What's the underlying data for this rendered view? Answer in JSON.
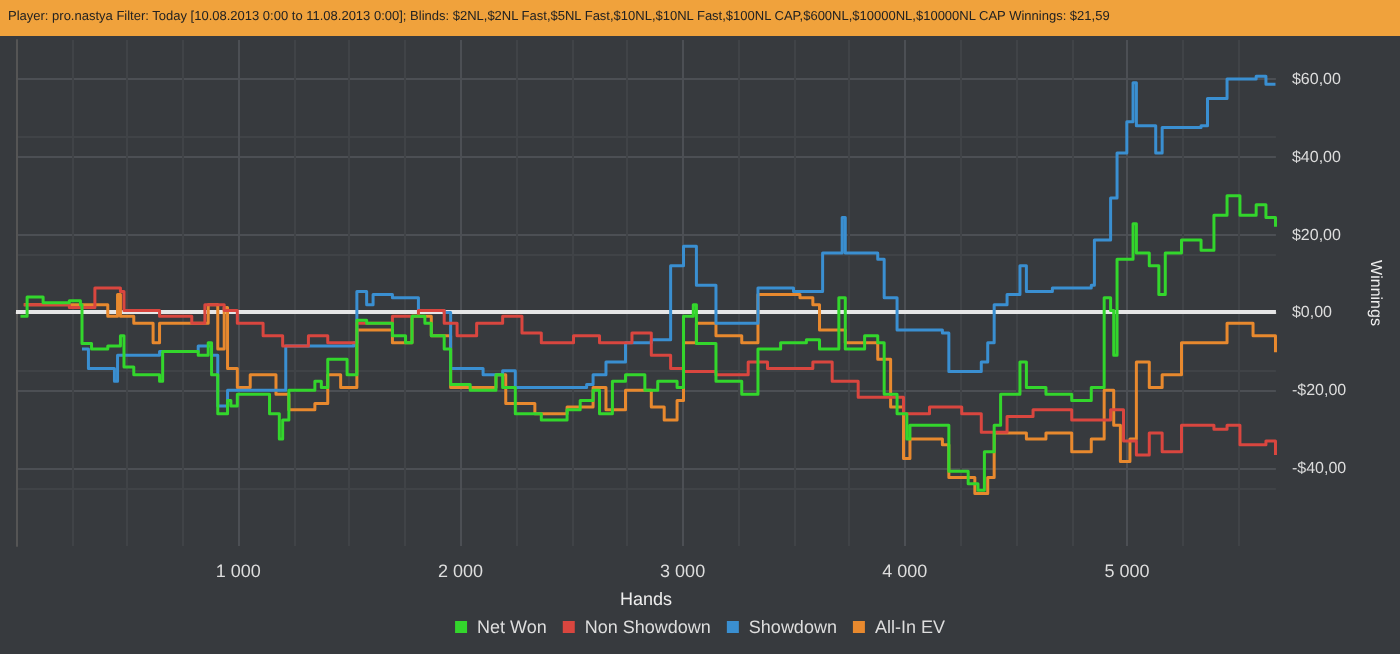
{
  "chart_data": {
    "type": "step",
    "title": "Player: pro.nastya Filter: Today [10.08.2013 0:00 to 11.08.2013 0:00]; Blinds: $2NL,$2NL Fast,$5NL Fast,$10NL,$10NL Fast,$100NL CAP,$600NL,$10000NL,$10000NL CAP Winnings: $21,59",
    "xlabel": "Hands",
    "ylabel": "Winnings",
    "xlim": [
      0,
      5670
    ],
    "ylim": [
      -60,
      70
    ],
    "xticks": [
      {
        "value": 1000,
        "label": "1 000"
      },
      {
        "value": 2000,
        "label": "2 000"
      },
      {
        "value": 3000,
        "label": "3 000"
      },
      {
        "value": 4000,
        "label": "4 000"
      },
      {
        "value": 5000,
        "label": "5 000"
      }
    ],
    "yticks": [
      {
        "value": -40,
        "label": "-$40,00"
      },
      {
        "value": -20,
        "label": "-$20,00"
      },
      {
        "value": 0,
        "label": "$0,00"
      },
      {
        "value": 20,
        "label": "$20,00"
      },
      {
        "value": 40,
        "label": "$40,00"
      },
      {
        "value": 60,
        "label": "$60,00"
      }
    ],
    "grid": true,
    "legend": "bottom",
    "marker": "none",
    "line_style": "solid",
    "ref_lines": [
      {
        "axis": "y",
        "value": 0,
        "label": null,
        "color": "#e6e6e6"
      }
    ],
    "series": [
      {
        "name": "Net Won",
        "color": "#33d62c",
        "x": [
          20,
          50,
          122,
          240,
          290,
          297,
          340,
          413,
          470,
          486,
          530,
          646,
          660,
          820,
          865,
          880,
          908,
          952,
          967,
          996,
          1141,
          1185,
          1200,
          1228,
          1345,
          1374,
          1403,
          1490,
          1534,
          1578,
          1694,
          1753,
          1782,
          1840,
          1869,
          1927,
          1956,
          2044,
          2160,
          2190,
          2247,
          2364,
          2480,
          2539,
          2597,
          2626,
          2684,
          2743,
          2830,
          2888,
          2975,
          3004,
          3048,
          3062,
          3150,
          3266,
          3339,
          3441,
          3557,
          3616,
          3703,
          3732,
          3819,
          3878,
          3907,
          3965,
          4009,
          4023,
          4169,
          4198,
          4285,
          4329,
          4358,
          4402,
          4431,
          4504,
          4518,
          4547,
          4635,
          4751,
          4839,
          4897,
          4926,
          4940,
          4955,
          5013,
          5027,
          5042,
          5100,
          5143,
          5172,
          5245,
          5333,
          5391,
          5450,
          5508,
          5581,
          5625,
          5668
        ],
        "values": [
          -1,
          4,
          2.5,
          3,
          2,
          -8,
          -9.4,
          -8.6,
          -6,
          -14,
          -16,
          -17.7,
          -10,
          -11,
          -7.8,
          -16,
          -26,
          -22.6,
          -24,
          -21,
          -26,
          -32.5,
          -27.6,
          -20,
          -17.7,
          -19.3,
          -12,
          -16,
          -2,
          -2.8,
          -6,
          -7.8,
          -1,
          -2.8,
          -6,
          -9.4,
          -18.5,
          -20,
          -16,
          -19.3,
          -26,
          -27.6,
          -25,
          -22.6,
          -20,
          -26,
          -17.7,
          -16,
          -20,
          -17.7,
          -19.3,
          -1,
          2,
          -8,
          -17.7,
          -21,
          -9.4,
          -7.8,
          -7,
          -9.4,
          3.8,
          -9.4,
          -6,
          -7.8,
          -21,
          -26,
          -32.5,
          -29,
          -29,
          -40.8,
          -44,
          -45.7,
          -35.8,
          -29,
          -21,
          -21,
          -12.7,
          -19.3,
          -21,
          -22.6,
          -19.3,
          3.8,
          0.5,
          -11,
          13.7,
          13.7,
          22.8,
          15.3,
          12,
          4.6,
          15.3,
          18.6,
          16,
          25,
          30,
          25,
          27.7,
          24.4,
          22
        ]
      },
      {
        "name": "Non Showdown",
        "color": "#d9463f",
        "x": [
          35,
          240,
          355,
          470,
          486,
          646,
          791,
          850,
          937,
          996,
          1112,
          1200,
          1316,
          1403,
          1534,
          1694,
          1811,
          1927,
          1985,
          2073,
          2190,
          2277,
          2364,
          2509,
          2626,
          2772,
          2859,
          2946,
          3004,
          3150,
          3295,
          3382,
          3586,
          3673,
          3790,
          3878,
          3994,
          4111,
          4256,
          4344,
          4460,
          4577,
          4751,
          4926,
          4984,
          5042,
          5100,
          5158,
          5245,
          5391,
          5450,
          5508,
          5625,
          5668
        ],
        "values": [
          2,
          1.3,
          6.3,
          5.4,
          0.5,
          -1,
          -2.8,
          2,
          0.5,
          -2.8,
          -6,
          -8.6,
          -6,
          -7.8,
          -2.8,
          -1,
          0.5,
          -2.8,
          -6,
          -2.8,
          -1,
          -5.3,
          -7.8,
          -6,
          -7.8,
          -5.3,
          -11,
          -14.4,
          -15.2,
          -16,
          -12.7,
          -14.4,
          -12.7,
          -17.7,
          -21.8,
          -21.8,
          -26,
          -24.3,
          -26,
          -30.8,
          -26.7,
          -25,
          -27.6,
          -25,
          -33,
          -36.6,
          -31,
          -35.8,
          -29,
          -30,
          -29,
          -34,
          -33,
          -36.6
        ]
      },
      {
        "name": "Showdown",
        "color": "#3a8fd1",
        "x": [
          297,
          326,
          443,
          457,
          646,
          820,
          880,
          908,
          952,
          1170,
          1214,
          1403,
          1520,
          1534,
          1578,
          1607,
          1694,
          1811,
          1927,
          1956,
          2102,
          2190,
          2247,
          2568,
          2597,
          2655,
          2743,
          2859,
          2946,
          3004,
          3062,
          3150,
          3324,
          3339,
          3499,
          3616,
          3630,
          3718,
          3732,
          3878,
          3907,
          3965,
          4169,
          4198,
          4344,
          4373,
          4402,
          4460,
          4518,
          4547,
          4664,
          4839,
          4853,
          4926,
          4955,
          4999,
          5027,
          5042,
          5129,
          5158,
          5333,
          5362,
          5450,
          5581,
          5625,
          5668
        ],
        "values": [
          -9.4,
          -14.4,
          -17.7,
          -11,
          -10,
          -8.6,
          -11,
          -24,
          -20,
          -20,
          -8.6,
          -8.6,
          -7.8,
          5.4,
          2,
          4.6,
          3.8,
          0.5,
          0,
          -14.4,
          -16,
          -15,
          -19.3,
          -18.5,
          -16,
          -12.7,
          -7.8,
          -7,
          12,
          17,
          7,
          -2.8,
          -2.8,
          6.3,
          5.4,
          5.4,
          15.3,
          24.4,
          15.3,
          13.7,
          3.8,
          -4.5,
          -5.3,
          -15.2,
          -12.7,
          -7.8,
          2,
          4.6,
          12,
          5.4,
          6.3,
          7,
          18.6,
          29.4,
          41,
          49,
          59,
          48,
          41,
          47.5,
          48,
          55,
          60,
          60.7,
          58.6,
          58.3
        ]
      },
      {
        "name": "All-In EV",
        "color": "#e8892e",
        "x": [
          35,
          290,
          340,
          413,
          457,
          470,
          530,
          617,
          646,
          791,
          865,
          908,
          937,
          952,
          996,
          1054,
          1170,
          1228,
          1345,
          1403,
          1461,
          1534,
          1694,
          1782,
          1869,
          1956,
          2160,
          2204,
          2335,
          2480,
          2597,
          2655,
          2743,
          2859,
          2917,
          2975,
          3004,
          3062,
          3150,
          3266,
          3339,
          3528,
          3586,
          3616,
          3732,
          3878,
          3936,
          3994,
          4023,
          4169,
          4198,
          4315,
          4373,
          4402,
          4547,
          4635,
          4751,
          4839,
          4897,
          4940,
          4970,
          5013,
          5042,
          5100,
          5158,
          5245,
          5333,
          5450,
          5567,
          5668
        ],
        "values": [
          2,
          2,
          2,
          -1,
          4.6,
          -1,
          -2.8,
          -7.8,
          -2.8,
          -2.8,
          2,
          -9.4,
          1.3,
          -14.4,
          -19.3,
          -16,
          -21,
          -25,
          -23.4,
          -16,
          -19.3,
          -4.5,
          -7.8,
          -1,
          -6,
          -19.3,
          -16,
          -23.4,
          -26,
          -24.3,
          -19.3,
          -25,
          -20,
          -24.3,
          -27.6,
          -22.6,
          -7.8,
          -2.8,
          -6,
          -7.8,
          4.6,
          3.8,
          2,
          -4.5,
          -7.8,
          -12,
          -24.3,
          -37.5,
          -32.5,
          -34,
          -42.4,
          -46.5,
          -42.4,
          -31,
          -32.5,
          -31,
          -35.8,
          -32.5,
          -20,
          -29,
          -38.3,
          -32.5,
          -12.7,
          -19.3,
          -16,
          -7.8,
          -7.8,
          -2.8,
          -6,
          -10.2
        ]
      }
    ]
  }
}
